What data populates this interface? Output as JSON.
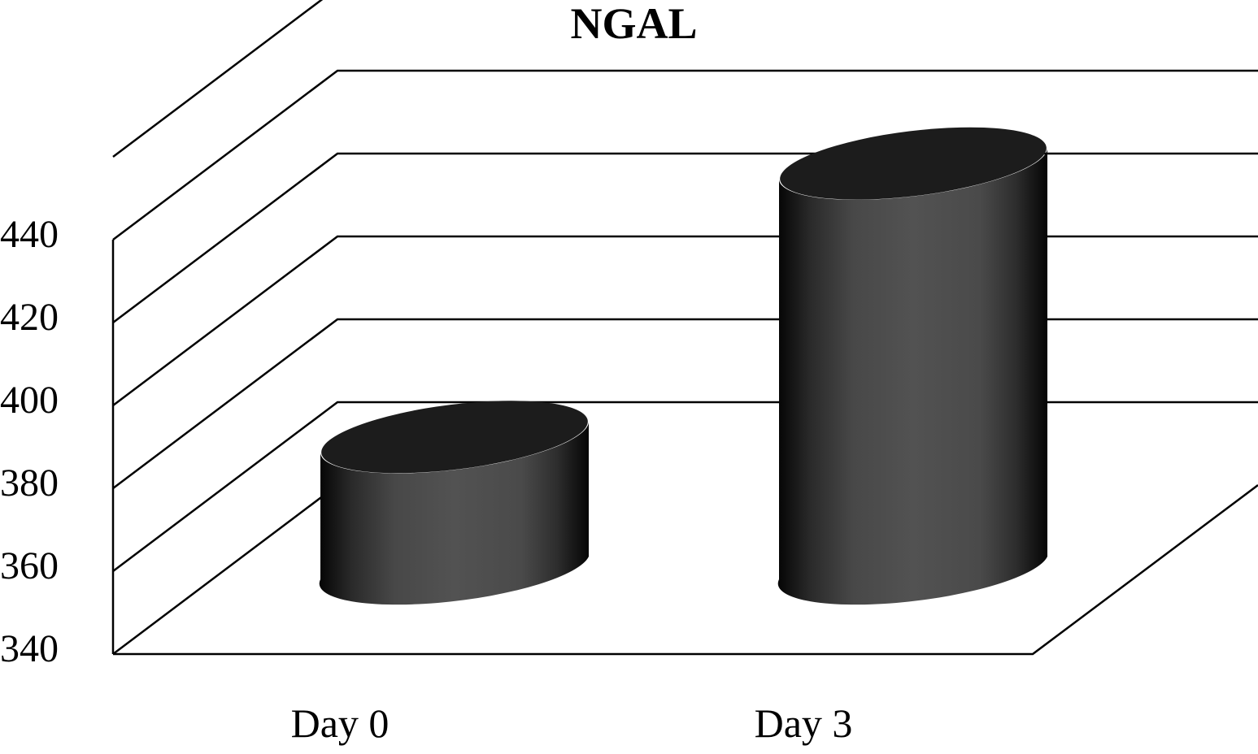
{
  "chart_data": {
    "type": "bar",
    "style": "3d-cylinder",
    "title": "NGAL",
    "xlabel": "",
    "ylabel": "",
    "categories": [
      "Day 0",
      "Day 3"
    ],
    "values": [
      372,
      438
    ],
    "ylim": [
      340,
      460
    ],
    "yticks": [
      340,
      360,
      380,
      400,
      420,
      440
    ],
    "grid": true,
    "legend": null,
    "colors": {
      "bar_side_dark": "#050505",
      "bar_side_light": "#525252",
      "bar_top": "#1c1c1c",
      "grid": "#000000",
      "background": "#ffffff"
    }
  },
  "labels": {
    "title": "NGAL",
    "yticks": [
      "340",
      "360",
      "380",
      "400",
      "420",
      "440"
    ],
    "xticks": [
      "Day 0",
      "Day 3"
    ]
  }
}
